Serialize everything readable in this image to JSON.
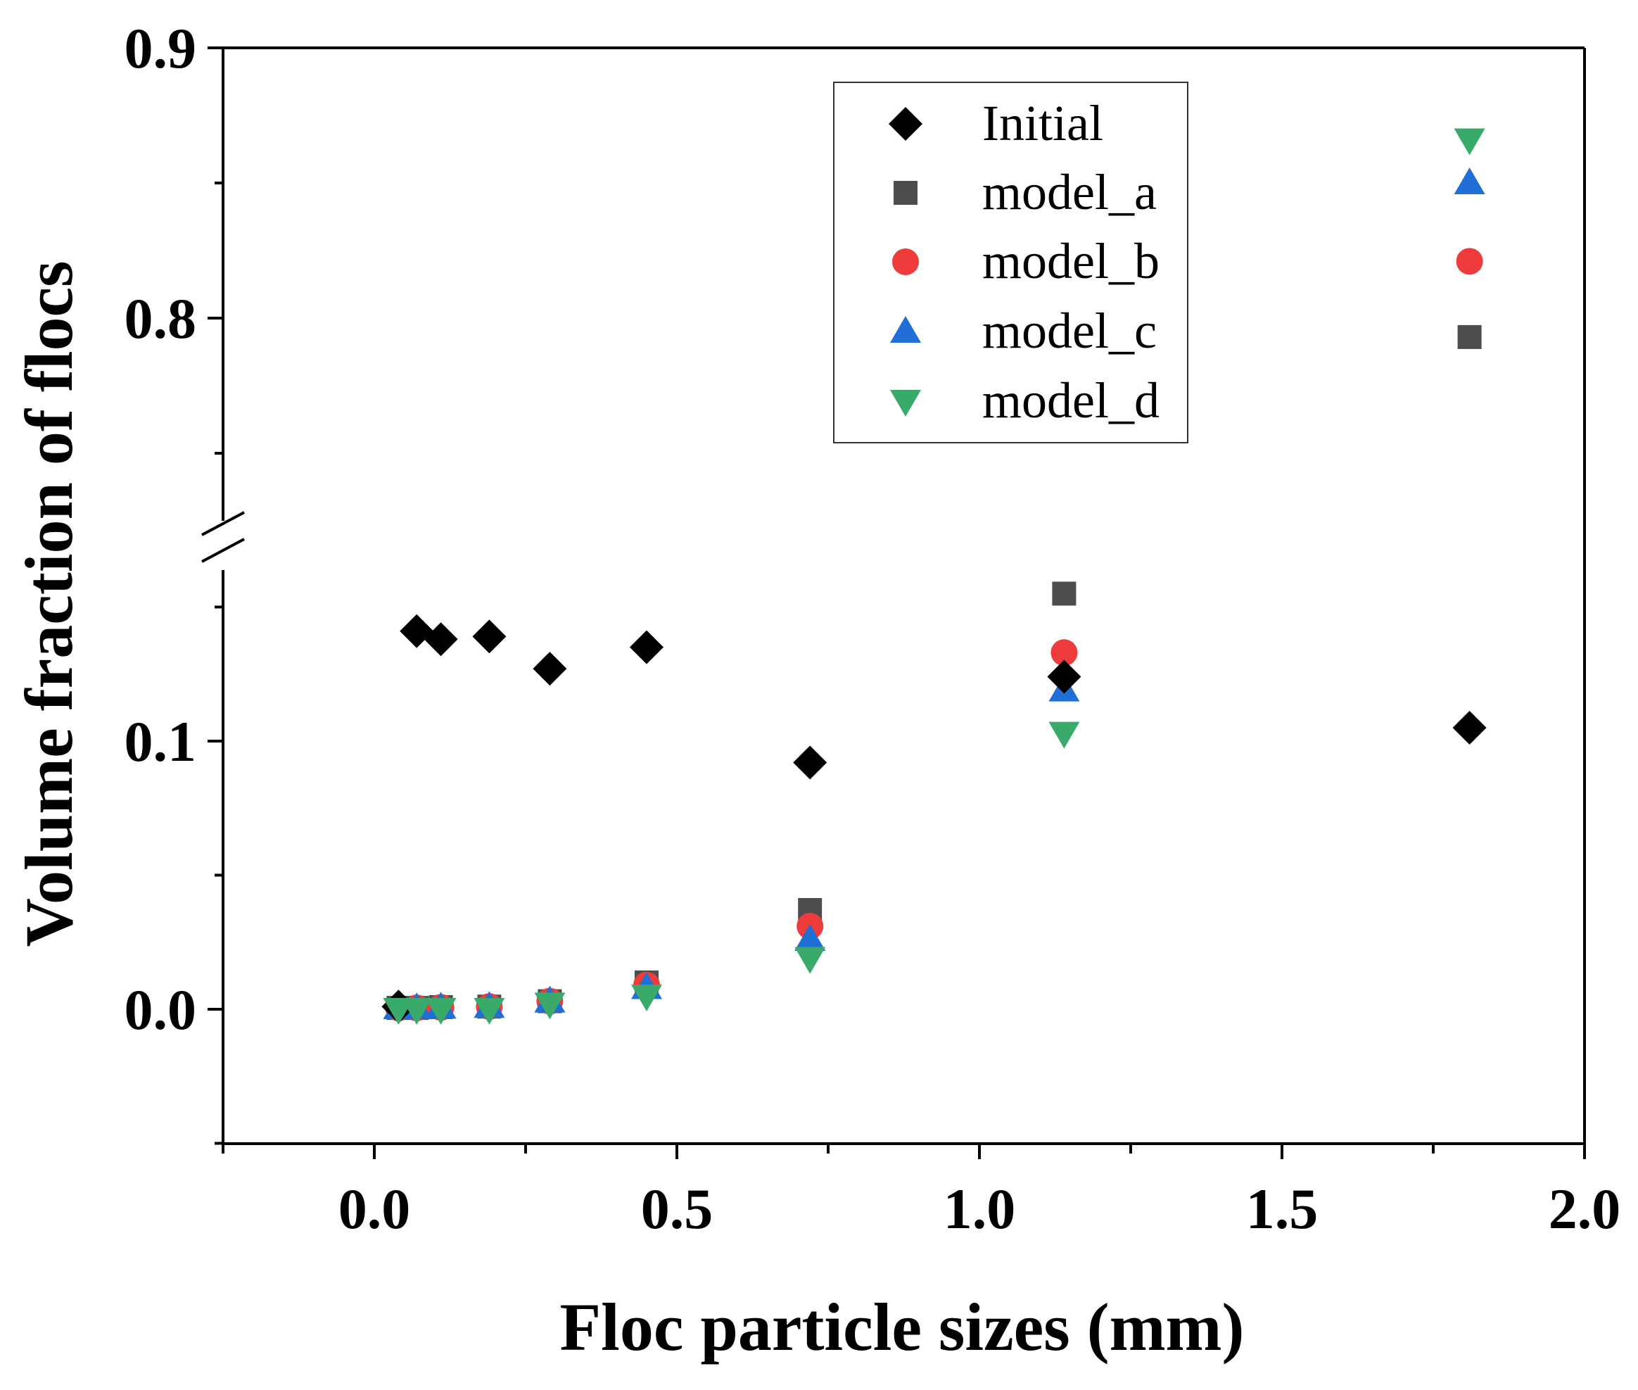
{
  "chart_data": {
    "type": "scatter",
    "title": "",
    "xlabel": "Floc particle sizes (mm)",
    "ylabel": "Volume fraction of flocs",
    "xlim": [
      -0.25,
      2.0
    ],
    "x_ticks": [
      0.0,
      0.5,
      1.0,
      1.5,
      2.0
    ],
    "x_tick_labels": [
      "0.0",
      "0.5",
      "1.0",
      "1.5",
      "2.0"
    ],
    "y_axis_break": true,
    "y_segments": [
      {
        "range": [
          -0.05,
          0.165
        ],
        "ticks": [
          0.0,
          0.1
        ],
        "tick_labels": [
          "0.0",
          "0.1"
        ],
        "minor_ticks": [
          -0.05,
          0.05,
          0.15
        ]
      },
      {
        "range": [
          0.75,
          0.9
        ],
        "ticks": [
          0.8,
          0.9
        ],
        "tick_labels": [
          "0.8",
          "0.9"
        ],
        "minor_ticks": [
          0.75,
          0.85
        ]
      }
    ],
    "legend_position": "top-right",
    "x": [
      0.04,
      0.07,
      0.11,
      0.19,
      0.29,
      0.45,
      0.72,
      1.14,
      1.81
    ],
    "series": [
      {
        "name": "Initial",
        "marker": "diamond",
        "color": "#000000",
        "values": [
          0.001,
          0.141,
          0.138,
          0.139,
          0.127,
          0.135,
          0.092,
          0.124,
          0.105
        ]
      },
      {
        "name": "model_a",
        "marker": "square",
        "color": "#4d4d4d",
        "values": [
          0.0005,
          0.0005,
          0.0008,
          0.001,
          0.003,
          0.01,
          0.037,
          0.155,
          0.793
        ]
      },
      {
        "name": "model_b",
        "marker": "circle",
        "color": "#ee3b3b",
        "values": [
          0.0005,
          0.0005,
          0.0007,
          0.001,
          0.003,
          0.009,
          0.031,
          0.133,
          0.821
        ]
      },
      {
        "name": "model_c",
        "marker": "triangle-up",
        "color": "#1f6fd6",
        "values": [
          0.0005,
          0.0005,
          0.0007,
          0.001,
          0.003,
          0.008,
          0.026,
          0.119,
          0.85
        ]
      },
      {
        "name": "model_d",
        "marker": "triangle-down",
        "color": "#3aaa6a",
        "values": [
          0.0,
          0.0,
          0.0,
          0.0,
          0.002,
          0.005,
          0.019,
          0.103,
          0.866
        ]
      }
    ]
  }
}
